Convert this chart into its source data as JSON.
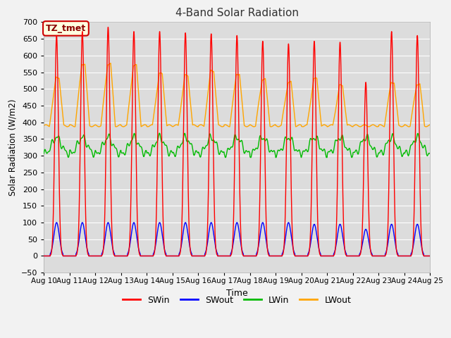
{
  "title": "4-Band Solar Radiation",
  "xlabel": "Time",
  "ylabel": "Solar Radiation (W/m2)",
  "ylim": [
    -50,
    700
  ],
  "xlabel_dates": [
    "Aug 10",
    "Aug 11",
    "Aug 12",
    "Aug 13",
    "Aug 14",
    "Aug 15",
    "Aug 16",
    "Aug 17",
    "Aug 18",
    "Aug 19",
    "Aug 20",
    "Aug 21",
    "Aug 22",
    "Aug 23",
    "Aug 24",
    "Aug 25"
  ],
  "days": 15,
  "points_per_day": 288,
  "swin_peaks": [
    660,
    672,
    685,
    672,
    672,
    668,
    665,
    660,
    643,
    635,
    643,
    640,
    520,
    672,
    660
  ],
  "swout_peaks": [
    100,
    100,
    100,
    100,
    100,
    100,
    100,
    100,
    100,
    100,
    95,
    95,
    80,
    95,
    95
  ],
  "lwout_night": 390,
  "lwout_day_peaks": [
    535,
    575,
    575,
    570,
    545,
    540,
    555,
    545,
    530,
    520,
    530,
    510,
    390,
    520,
    515
  ],
  "lwin_base": 305,
  "colors": {
    "SWin": "#ff0000",
    "SWout": "#0000ff",
    "LWin": "#00bb00",
    "LWout": "#ffa500"
  },
  "annotation_label": "TZ_tmet",
  "annotation_bg": "#ffffe0",
  "annotation_border": "#cc0000",
  "bg_color": "#dcdcdc",
  "grid_color": "#ffffff",
  "title_fontsize": 11,
  "fig_bg": "#f2f2f2"
}
